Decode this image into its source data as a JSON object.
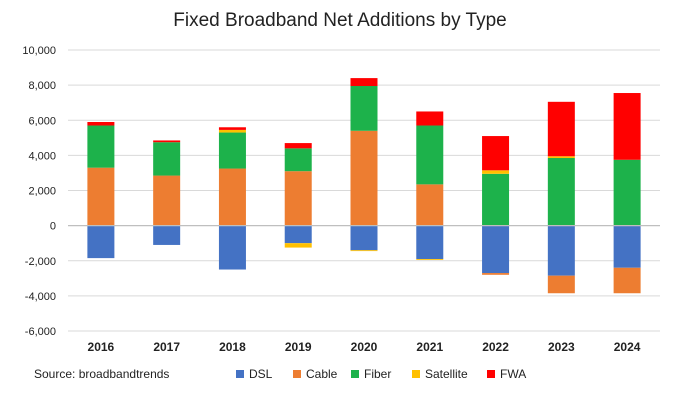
{
  "chart_data": {
    "type": "bar",
    "stacked": true,
    "title": "Fixed Broadband Net Additions by Type",
    "source": "Source: broadbandtrends",
    "xlabel": "",
    "ylabel": "",
    "ylim": [
      -6000,
      10000
    ],
    "yticks": [
      -6000,
      -4000,
      -2000,
      0,
      2000,
      4000,
      6000,
      8000,
      10000
    ],
    "ytick_labels": [
      "-6,000",
      "-4,000",
      "-2,000",
      "0",
      "2,000",
      "4,000",
      "6,000",
      "8,000",
      "10,000"
    ],
    "grid": "horizontal",
    "legend_position": "bottom",
    "categories": [
      "2016",
      "2017",
      "2018",
      "2019",
      "2020",
      "2021",
      "2022",
      "2023",
      "2024"
    ],
    "series": [
      {
        "name": "DSL",
        "color": "#4472C4",
        "values": [
          -1850,
          -1100,
          -2500,
          -1000,
          -1400,
          -1900,
          -2700,
          -2850,
          -2400
        ]
      },
      {
        "name": "Cable",
        "color": "#ED7D31",
        "values": [
          3300,
          2850,
          3250,
          3100,
          5400,
          2350,
          -100,
          -1000,
          -1450
        ]
      },
      {
        "name": "Fiber",
        "color": "#1DB24B",
        "values": [
          2400,
          1900,
          2050,
          1300,
          2550,
          3350,
          2950,
          3850,
          3750
        ]
      },
      {
        "name": "Satellite",
        "color": "#FFC000",
        "values": [
          0,
          0,
          150,
          -250,
          -50,
          -50,
          200,
          100,
          0
        ]
      },
      {
        "name": "FWA",
        "color": "#FF0000",
        "values": [
          200,
          100,
          150,
          300,
          450,
          800,
          1950,
          3100,
          3800
        ]
      }
    ],
    "colors": {
      "zero_line": "#BFBFBF",
      "grid": "#D9D9D9"
    }
  }
}
